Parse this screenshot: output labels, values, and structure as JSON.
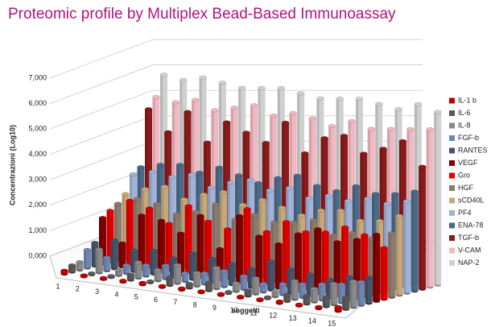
{
  "chart_data": {
    "type": "bar3d",
    "title": "Proteomic profile by Multiplex Bead-Based Immunoassay",
    "x_label": "soggetti",
    "y_label": "Concentrazioni (Log10)",
    "categories": [
      "1",
      "2",
      "3",
      "4",
      "5",
      "6",
      "7",
      "8",
      "9",
      "10",
      "11",
      "12",
      "13",
      "14",
      "15"
    ],
    "ylim": [
      0,
      7000
    ],
    "yticks": [
      {
        "value": 0,
        "label": "0,000"
      },
      {
        "value": 1000,
        "label": "1,000"
      },
      {
        "value": 2000,
        "label": "2,000"
      },
      {
        "value": 3000,
        "label": "3,000"
      },
      {
        "value": 4000,
        "label": "4,000"
      },
      {
        "value": 5000,
        "label": "5,000"
      },
      {
        "value": 6000,
        "label": "6,000"
      },
      {
        "value": 7000,
        "label": "7,000"
      }
    ],
    "grid": true,
    "legend": "right",
    "series": [
      {
        "name": "IL-1 b",
        "color": "#c00000",
        "values": [
          120,
          40,
          40,
          40,
          60,
          40,
          50,
          40,
          40,
          40,
          40,
          60,
          40,
          50,
          150
        ]
      },
      {
        "name": "IL-6",
        "color": "#595959",
        "values": [
          250,
          40,
          40,
          200,
          40,
          300,
          150,
          300,
          40,
          200,
          40,
          250,
          300,
          350,
          450
        ]
      },
      {
        "name": "IL-8",
        "color": "#8a8a8a",
        "values": [
          300,
          900,
          200,
          600,
          400,
          700,
          500,
          800,
          300,
          600,
          200,
          700,
          500,
          800,
          1000
        ]
      },
      {
        "name": "FGF-b",
        "color": "#6f86b0",
        "values": [
          700,
          500,
          300,
          400,
          500,
          300,
          400,
          600,
          500,
          300,
          400,
          500,
          600,
          700,
          900
        ]
      },
      {
        "name": "RANTES",
        "color": "#44546a",
        "values": [
          900,
          1100,
          800,
          900,
          700,
          1000,
          900,
          800,
          700,
          1100,
          900,
          800,
          700,
          900,
          1000
        ]
      },
      {
        "name": "VEGF",
        "color": "#800000",
        "values": [
          1800,
          900,
          2100,
          2000,
          1600,
          2400,
          1200,
          2600,
          1900,
          1700,
          2200,
          2500,
          2100,
          2300,
          2600
        ]
      },
      {
        "name": "Gro",
        "color": "#e00000",
        "values": [
          2000,
          2500,
          2300,
          1800,
          2600,
          2100,
          1900,
          2800,
          2000,
          2500,
          2200,
          2300,
          2600,
          2400,
          2000
        ]
      },
      {
        "name": "HGF",
        "color": "#8c7a6b",
        "values": [
          2200,
          2500,
          2400,
          2100,
          2300,
          2700,
          2200,
          2500,
          2300,
          2400,
          2600,
          2100,
          2300,
          2200,
          2500
        ]
      },
      {
        "name": "sCD40L",
        "color": "#c4a97a",
        "values": [
          2500,
          2800,
          3000,
          2600,
          2900,
          3100,
          2700,
          3000,
          2800,
          2600,
          2900,
          3000,
          2700,
          2800,
          3100
        ]
      },
      {
        "name": "PF4",
        "color": "#9db3d8",
        "values": [
          3200,
          3400,
          3300,
          3500,
          3100,
          3400,
          3600,
          3300,
          3500,
          3200,
          3400,
          3300,
          3500,
          3400,
          3600
        ]
      },
      {
        "name": "ENA-78",
        "color": "#4a6a8a",
        "values": [
          3400,
          3600,
          3700,
          3500,
          3800,
          3600,
          3400,
          3700,
          3900,
          3600,
          3500,
          3800,
          3600,
          3700,
          3900
        ]
      },
      {
        "name": "TGF-b",
        "color": "#8b1a1a",
        "values": [
          5600,
          4800,
          5700,
          4600,
          5500,
          5200,
          4900,
          5800,
          4700,
          5400,
          5600,
          5000,
          5300,
          5700,
          4800
        ]
      },
      {
        "name": "V-CAM",
        "color": "#f0b8c0",
        "values": [
          6000,
          5900,
          6100,
          5800,
          6000,
          6200,
          5900,
          6100,
          6000,
          5800,
          6100,
          5900,
          6000,
          6100,
          6200
        ]
      },
      {
        "name": "NAP-2",
        "color": "#d0d0d0",
        "values": [
          6800,
          6700,
          6900,
          6800,
          6700,
          6800,
          6900,
          6800,
          6700,
          6800,
          6900,
          6800,
          6700,
          7000,
          6800
        ]
      }
    ]
  }
}
